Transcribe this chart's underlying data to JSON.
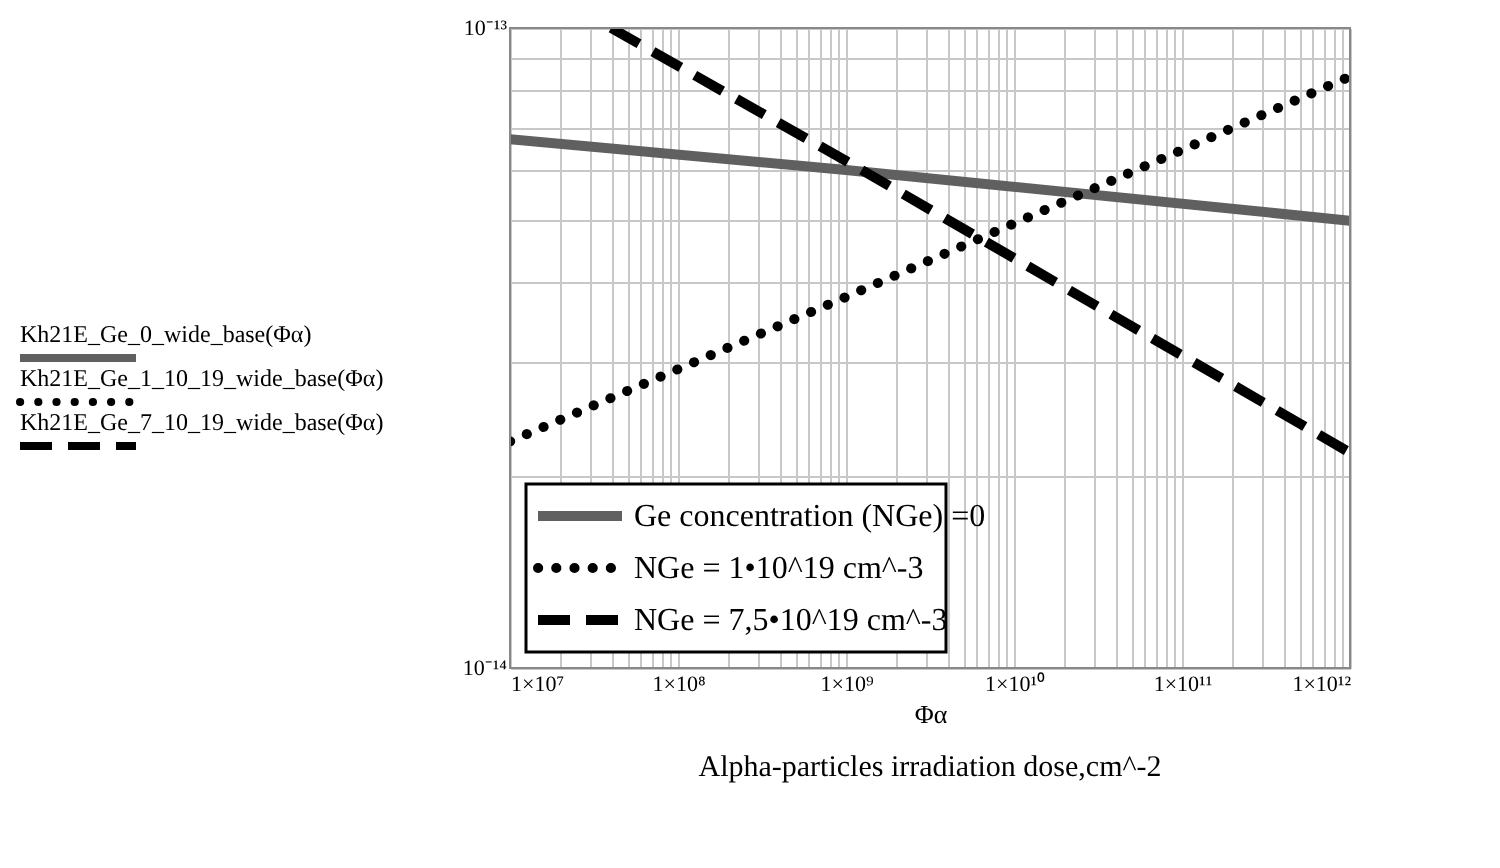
{
  "chart_data": {
    "type": "line",
    "xlabel": "Φα",
    "log": "xy",
    "grid": true,
    "legend": "bottom left",
    "annotations": [
      "Kh21E_Ge_0_wide_base(Φα)",
      "Kh21E_Ge_1_10_19_wide_base(Φα)",
      "Kh21E_Ge_7_10_19_wide_base(Φα)",
      "Alpha-particles irradiation dose,cm^-2"
    ],
    "xlim": [
      10000000.0,
      1000000000000.0
    ],
    "ylim": [
      1e-14,
      1e-13
    ],
    "xticks": [
      {
        "value": 10000000.0,
        "label": "1×10⁷"
      },
      {
        "value": 20000000.0,
        "label": null
      },
      {
        "value": 30000000.0,
        "label": null
      },
      {
        "value": 40000000.0,
        "label": null
      },
      {
        "value": 50000000.0,
        "label": null
      },
      {
        "value": 60000000.0,
        "label": null
      },
      {
        "value": 70000000.0,
        "label": null
      },
      {
        "value": 80000000.0,
        "label": null
      },
      {
        "value": 90000000.0,
        "label": null
      },
      {
        "value": 100000000.0,
        "label": "1×10⁸"
      },
      {
        "value": 200000000.0,
        "label": null
      },
      {
        "value": 300000000.0,
        "label": null
      },
      {
        "value": 400000000.0,
        "label": null
      },
      {
        "value": 500000000.0,
        "label": null
      },
      {
        "value": 600000000.0,
        "label": null
      },
      {
        "value": 700000000.0,
        "label": null
      },
      {
        "value": 800000000.0,
        "label": null
      },
      {
        "value": 900000000.0,
        "label": null
      },
      {
        "value": 1000000000.0,
        "label": "1×10⁹"
      },
      {
        "value": 2000000000.0,
        "label": null
      },
      {
        "value": 3000000000.0,
        "label": null
      },
      {
        "value": 4000000000.0,
        "label": null
      },
      {
        "value": 5000000000.0,
        "label": null
      },
      {
        "value": 6000000000.0,
        "label": null
      },
      {
        "value": 7000000000.0,
        "label": null
      },
      {
        "value": 8000000000.0,
        "label": null
      },
      {
        "value": 9000000000.0,
        "label": null
      },
      {
        "value": 10000000000.0,
        "label": "1×10¹⁰"
      },
      {
        "value": 20000000000.0,
        "label": null
      },
      {
        "value": 30000000000.0,
        "label": null
      },
      {
        "value": 40000000000.0,
        "label": null
      },
      {
        "value": 50000000000.0,
        "label": null
      },
      {
        "value": 60000000000.0,
        "label": null
      },
      {
        "value": 70000000000.0,
        "label": null
      },
      {
        "value": 80000000000.0,
        "label": null
      },
      {
        "value": 90000000000.0,
        "label": null
      },
      {
        "value": 100000000000.0,
        "label": "1×10¹¹"
      },
      {
        "value": 200000000000.0,
        "label": null
      },
      {
        "value": 300000000000.0,
        "label": null
      },
      {
        "value": 400000000000.0,
        "label": null
      },
      {
        "value": 500000000000.0,
        "label": null
      },
      {
        "value": 600000000000.0,
        "label": null
      },
      {
        "value": 700000000000.0,
        "label": null
      },
      {
        "value": 800000000000.0,
        "label": null
      },
      {
        "value": 900000000000.0,
        "label": null
      },
      {
        "value": 1000000000000.0,
        "label": "1×10¹²"
      }
    ],
    "yticks": [
      {
        "value": 1e-14,
        "label": "10⁻¹⁴"
      },
      {
        "value": 2e-14,
        "label": null
      },
      {
        "value": 3e-14,
        "label": null
      },
      {
        "value": 4e-14,
        "label": null
      },
      {
        "value": 5e-14,
        "label": null
      },
      {
        "value": 6e-14,
        "label": null
      },
      {
        "value": 7e-14,
        "label": null
      },
      {
        "value": 8e-14,
        "label": null
      },
      {
        "value": 9e-14,
        "label": null
      },
      {
        "value": 1e-13,
        "label": "10⁻¹³"
      }
    ],
    "series": [
      {
        "name": "Ge concentration (NGe) =0",
        "color": "#606060",
        "line_style": "solid",
        "marker": "none",
        "x": [
          10000000.0,
          1000000000.0,
          1000000000000.0
        ],
        "values": [
          6.7e-14,
          6e-14,
          5e-14
        ]
      },
      {
        "name": "NGe = 1•10^19 cm^-3",
        "color": "#000000",
        "line_style": "dotted",
        "marker": "none",
        "x": [
          10000000.0,
          1000000000.0,
          1000000000000.0
        ],
        "values": [
          2.26e-14,
          3.8e-14,
          8.4e-14
        ]
      },
      {
        "name": "NGe = 7,5•10^19 cm^-3",
        "color": "#000000",
        "line_style": "dashed",
        "marker": "none",
        "x": [
          40000000.0,
          1000000000.0,
          1000000000000.0
        ],
        "values": [
          1e-13,
          6.2e-14,
          2.17e-14
        ]
      }
    ]
  }
}
